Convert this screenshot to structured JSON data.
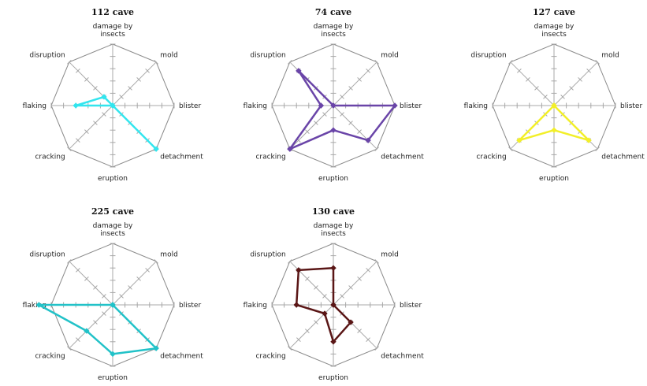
{
  "chart_data": [
    {
      "type": "radar",
      "title": "112 cave",
      "axes": [
        "damage by insects",
        "mold",
        "blister",
        "detachment",
        "eruption",
        "cracking",
        "flaking",
        "disruption"
      ],
      "range": [
        0,
        5
      ],
      "grid": true,
      "series": [
        {
          "color": "#33e5ee",
          "values": [
            0,
            0,
            0,
            5,
            0,
            0,
            3,
            1
          ]
        }
      ]
    },
    {
      "type": "radar",
      "title": "74 cave",
      "axes": [
        "damage by insects",
        "mold",
        "blister",
        "detachment",
        "eruption",
        "cracking",
        "flaking",
        "disruption"
      ],
      "range": [
        0,
        5
      ],
      "grid": true,
      "series": [
        {
          "color": "#6a45a8",
          "values": [
            0,
            0,
            5,
            4,
            2,
            5,
            1,
            4
          ]
        }
      ]
    },
    {
      "type": "radar",
      "title": "127 cave",
      "axes": [
        "damage by insects",
        "mold",
        "blister",
        "detachment",
        "eruption",
        "cracking",
        "flaking",
        "disruption"
      ],
      "range": [
        0,
        5
      ],
      "grid": true,
      "series": [
        {
          "color": "#f2ef2a",
          "values": [
            0,
            0,
            0,
            4,
            2,
            4,
            0,
            0
          ]
        }
      ]
    },
    {
      "type": "radar",
      "title": "225 cave",
      "axes": [
        "damage by insects",
        "mold",
        "blister",
        "detachment",
        "eruption",
        "cracking",
        "flaking",
        "disruption"
      ],
      "range": [
        0,
        5
      ],
      "grid": true,
      "series": [
        {
          "color": "#22c2c8",
          "values": [
            0,
            0,
            0,
            5,
            4,
            3,
            6,
            0
          ]
        }
      ]
    },
    {
      "type": "radar",
      "title": "130 cave",
      "axes": [
        "damage by insects",
        "mold",
        "blister",
        "detachment",
        "eruption",
        "cracking",
        "flaking",
        "disruption"
      ],
      "range": [
        0,
        5
      ],
      "grid": true,
      "series": [
        {
          "color": "#5a1616",
          "values": [
            3,
            0,
            0,
            2,
            3,
            1,
            3,
            4
          ]
        }
      ]
    }
  ]
}
